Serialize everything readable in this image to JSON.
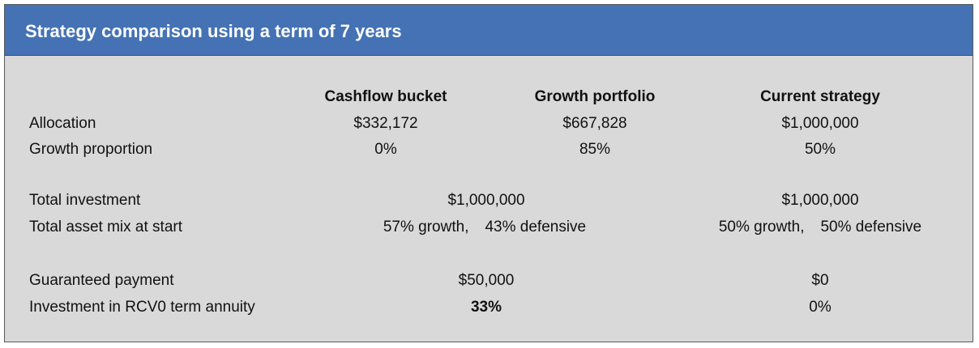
{
  "title": "Strategy comparison using a term of 7 years",
  "columns": {
    "cashflow_bucket": "Cashflow bucket",
    "growth_portfolio": "Growth portfolio",
    "current_strategy": "Current strategy"
  },
  "rows": {
    "allocation": {
      "label": "Allocation",
      "cashflow_bucket": "$332,172",
      "growth_portfolio": "$667,828",
      "current_strategy": "$1,000,000"
    },
    "growth_proportion": {
      "label": "Growth proportion",
      "cashflow_bucket": "0%",
      "growth_portfolio": "85%",
      "current_strategy": "50%"
    },
    "total_investment": {
      "label": "Total investment",
      "combined": "$1,000,000",
      "current_strategy": "$1,000,000"
    },
    "total_asset_mix": {
      "label": "Total asset mix at start",
      "combined_growth": "57% growth,",
      "combined_defensive": "43% defensive",
      "current_growth": "50% growth,",
      "current_defensive": "50% defensive"
    },
    "guaranteed_payment": {
      "label": "Guaranteed payment",
      "combined": "$50,000",
      "current_strategy": "$0"
    },
    "rcv0_investment": {
      "label": "Investment in RCV0 term annuity",
      "combined": "33%",
      "current_strategy": "0%"
    }
  }
}
